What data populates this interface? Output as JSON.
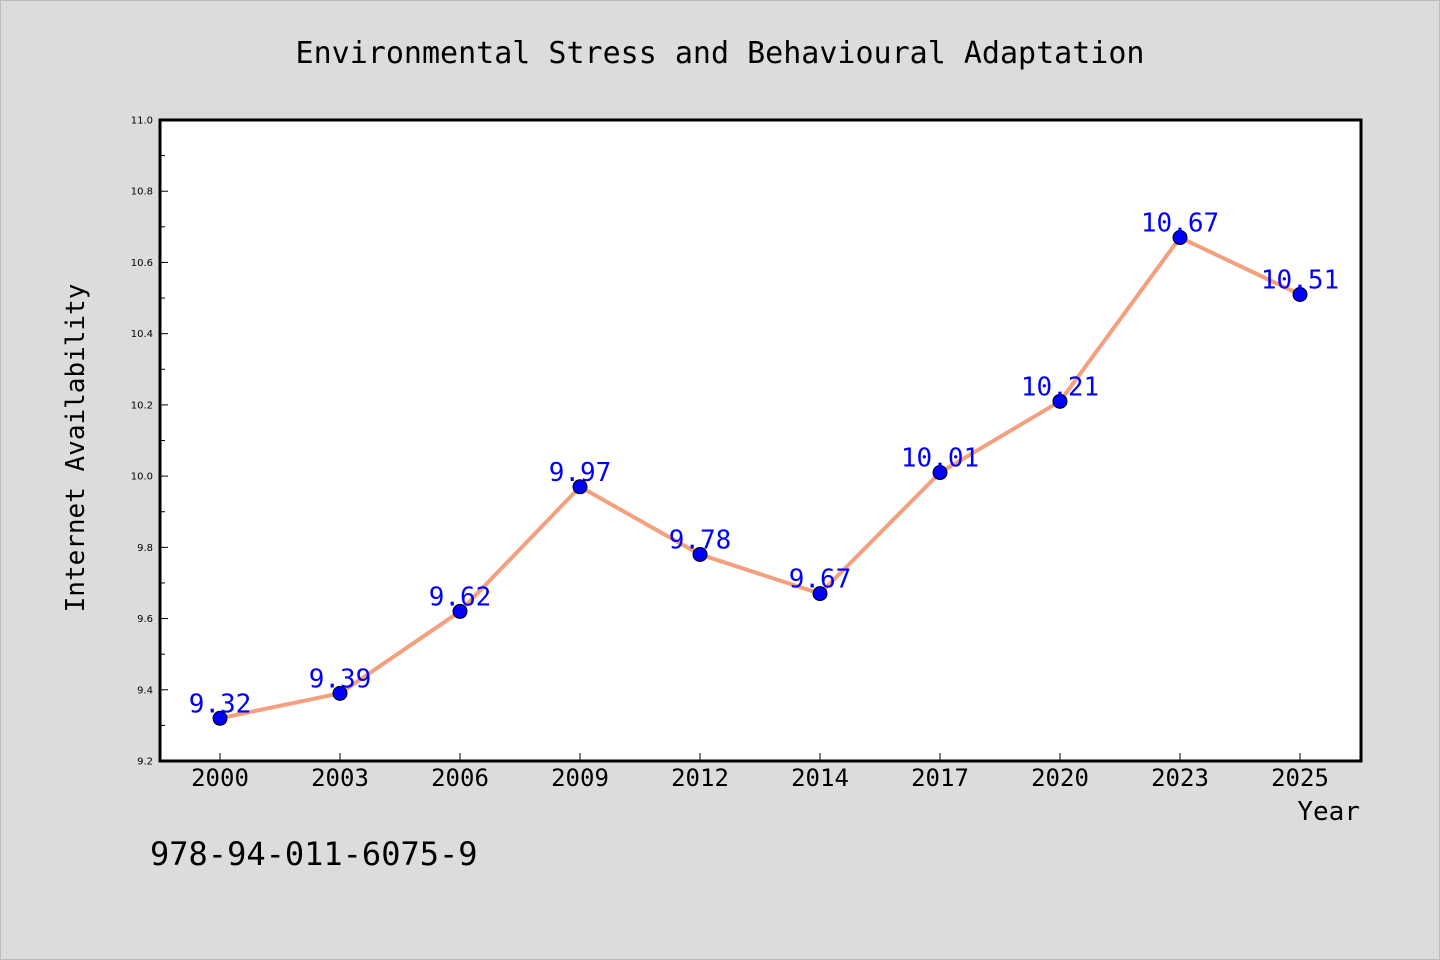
{
  "chart_data": {
    "type": "line",
    "title": "Environmental Stress and Behavioural Adaptation",
    "xlabel": "Year",
    "ylabel": "Internet Availability",
    "categories": [
      "2000",
      "2003",
      "2006",
      "2009",
      "2012",
      "2014",
      "2017",
      "2020",
      "2023",
      "2025"
    ],
    "series": [
      {
        "values": [
          9.32,
          9.39,
          9.62,
          9.97,
          9.78,
          9.67,
          10.01,
          10.21,
          10.67,
          10.51
        ],
        "data_labels": [
          "9.32",
          "9.39",
          "9.62",
          "9.97",
          "9.78",
          "9.67",
          "10.01",
          "10.21",
          "10.67",
          "10.51"
        ],
        "line_color": "#f4a07e",
        "marker_color": "#0000ff"
      }
    ],
    "ylim": [
      9.2,
      11.0
    ],
    "yticks": [
      "9.2",
      "9.4",
      "9.6",
      "9.8",
      "10.0",
      "10.2",
      "10.4",
      "10.6",
      "10.8",
      "11.0"
    ],
    "grid": false,
    "label_color": "#0000ff"
  },
  "footer_text": "978-94-011-6075-9"
}
